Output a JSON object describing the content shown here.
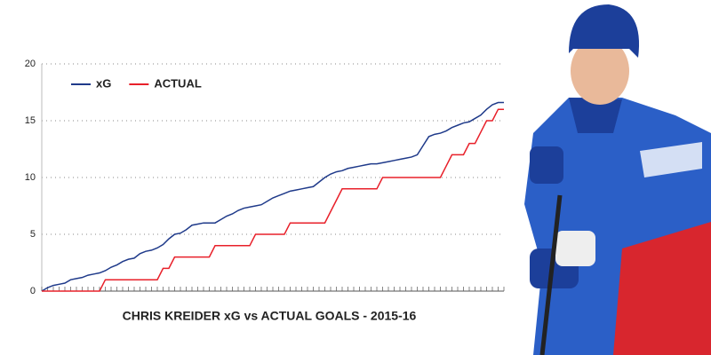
{
  "chart_data": {
    "type": "line",
    "title": "CHRIS KREIDER xG vs ACTUAL GOALS - 2015-16",
    "categories": [
      null,
      null,
      null,
      null,
      null,
      null,
      null,
      null,
      null,
      null,
      null,
      null,
      null,
      null,
      null,
      null,
      null,
      null,
      null,
      null,
      null,
      null,
      null,
      null,
      null,
      null,
      null,
      null,
      null,
      null,
      null,
      null,
      null,
      null,
      null,
      null,
      null,
      null,
      null,
      null,
      null,
      null,
      null,
      null,
      null,
      null,
      null,
      null,
      null,
      null,
      null,
      null,
      null,
      null,
      null,
      null,
      null,
      null,
      null,
      null,
      null,
      null,
      null,
      null,
      null,
      null,
      null,
      null,
      null,
      null,
      null,
      null,
      null,
      null,
      null,
      null,
      null,
      null,
      null,
      null,
      null
    ],
    "series": [
      {
        "name": "xG",
        "color": "#1f3a8a",
        "values": [
          0,
          0.3,
          0.5,
          0.6,
          0.7,
          1.0,
          1.1,
          1.2,
          1.4,
          1.5,
          1.6,
          1.8,
          2.1,
          2.3,
          2.6,
          2.8,
          2.9,
          3.3,
          3.5,
          3.6,
          3.8,
          4.1,
          4.6,
          5.0,
          5.1,
          5.4,
          5.8,
          5.9,
          6.0,
          6.0,
          6.0,
          6.3,
          6.6,
          6.8,
          7.1,
          7.3,
          7.4,
          7.5,
          7.6,
          7.9,
          8.2,
          8.4,
          8.6,
          8.8,
          8.9,
          9.0,
          9.1,
          9.2,
          9.6,
          10.0,
          10.3,
          10.5,
          10.6,
          10.8,
          10.9,
          11.0,
          11.1,
          11.2,
          11.2,
          11.3,
          11.4,
          11.5,
          11.6,
          11.7,
          11.8,
          12.0,
          12.8,
          13.6,
          13.8,
          13.9,
          14.1,
          14.4,
          14.6,
          14.8,
          14.9,
          15.2,
          15.5,
          16.0,
          16.4,
          16.6,
          16.6
        ]
      },
      {
        "name": "ACTUAL",
        "color": "#e8202a",
        "values": [
          0,
          0,
          0,
          0,
          0,
          0,
          0,
          0,
          0,
          0,
          0,
          1,
          1,
          1,
          1,
          1,
          1,
          1,
          1,
          1,
          1,
          2,
          2,
          3,
          3,
          3,
          3,
          3,
          3,
          3,
          4,
          4,
          4,
          4,
          4,
          4,
          4,
          5,
          5,
          5,
          5,
          5,
          5,
          6,
          6,
          6,
          6,
          6,
          6,
          6,
          7,
          8,
          9,
          9,
          9,
          9,
          9,
          9,
          9,
          10,
          10,
          10,
          10,
          10,
          10,
          10,
          10,
          10,
          10,
          10,
          11,
          12,
          12,
          12,
          13,
          13,
          14,
          15,
          15,
          16,
          16
        ]
      }
    ],
    "ylim": [
      0,
      20
    ],
    "yticks": [
      0,
      5,
      10,
      15,
      20
    ],
    "grid": true,
    "legend": "top-left"
  }
}
